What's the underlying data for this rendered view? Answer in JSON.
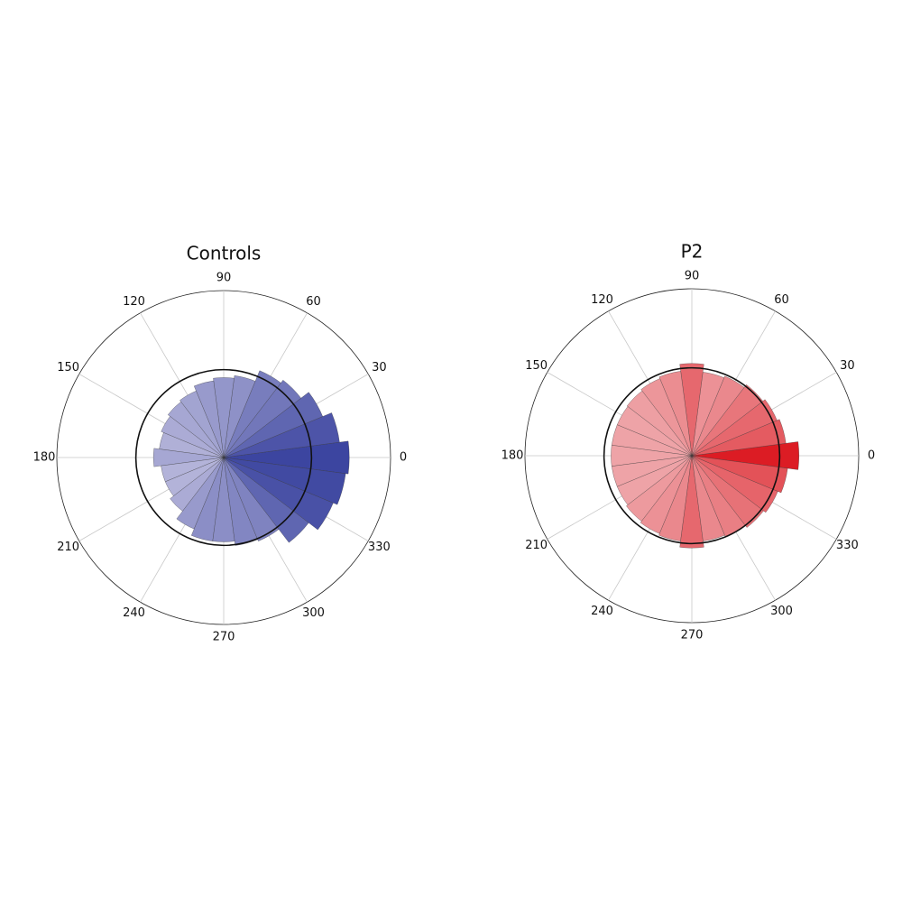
{
  "chart_data": [
    {
      "type": "polar_bar",
      "title": "Controls",
      "x": [
        0,
        15,
        30,
        45,
        60,
        75,
        90,
        105,
        120,
        135,
        150,
        165,
        180,
        195,
        210,
        225,
        240,
        255,
        270,
        285,
        300,
        315,
        330,
        345
      ],
      "values": [
        1.43,
        1.33,
        1.22,
        1.11,
        1.07,
        0.94,
        0.91,
        0.88,
        0.82,
        0.8,
        0.77,
        0.74,
        0.8,
        0.72,
        0.72,
        0.77,
        0.88,
        0.96,
        0.96,
        1.01,
        1.03,
        1.22,
        1.35,
        1.4
      ],
      "bin_width": 15,
      "rlim": [
        0,
        1.9
      ],
      "reference_circle": 1,
      "angle_ticks": [
        0,
        30,
        60,
        90,
        120,
        150,
        180,
        210,
        240,
        270,
        300,
        330
      ],
      "color_range": [
        "#b3b3d9",
        "#3c45a0"
      ],
      "grid": true
    },
    {
      "type": "polar_bar",
      "title": "P2",
      "x": [
        0,
        15,
        30,
        45,
        60,
        75,
        90,
        105,
        120,
        135,
        150,
        165,
        180,
        195,
        210,
        225,
        240,
        255,
        270,
        285,
        300,
        315,
        330,
        345
      ],
      "values": [
        1.22,
        1.08,
        1.05,
        1.02,
        0.98,
        0.96,
        1.05,
        0.97,
        0.95,
        0.93,
        0.92,
        0.92,
        0.92,
        0.92,
        0.92,
        0.94,
        0.96,
        0.98,
        1.05,
        0.98,
        1.0,
        1.03,
        1.06,
        1.1
      ],
      "bin_width": 15,
      "rlim": [
        0,
        1.9
      ],
      "reference_circle": 1,
      "angle_ticks": [
        0,
        30,
        60,
        90,
        120,
        150,
        180,
        210,
        240,
        270,
        300,
        330
      ],
      "color_range": [
        "#eea3a7",
        "#dc1c24"
      ],
      "grid": true
    }
  ]
}
